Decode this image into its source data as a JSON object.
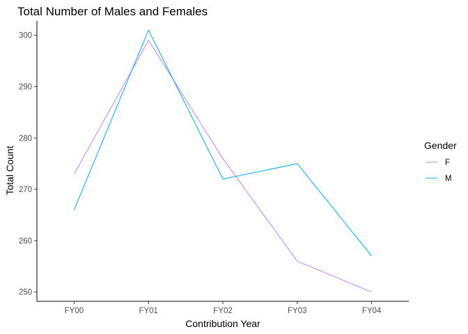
{
  "chart_data": {
    "type": "line",
    "title": "Total Number of Males and Females",
    "xlabel": "Contribution Year",
    "ylabel": "Total Count",
    "categories": [
      "FY00",
      "FY01",
      "FY02",
      "FY03",
      "FY04"
    ],
    "yticks": [
      250,
      260,
      270,
      280,
      290,
      300
    ],
    "ylim": [
      248.2,
      302.8
    ],
    "grid": false,
    "legend": {
      "title": "Gender",
      "placement": "right"
    },
    "series": [
      {
        "name": "F",
        "color": "#C77CFF",
        "values": [
          273,
          299,
          276,
          256,
          250
        ]
      },
      {
        "name": "M",
        "color": "#00A9FF",
        "values": [
          266,
          301,
          272,
          275,
          257
        ]
      }
    ]
  }
}
